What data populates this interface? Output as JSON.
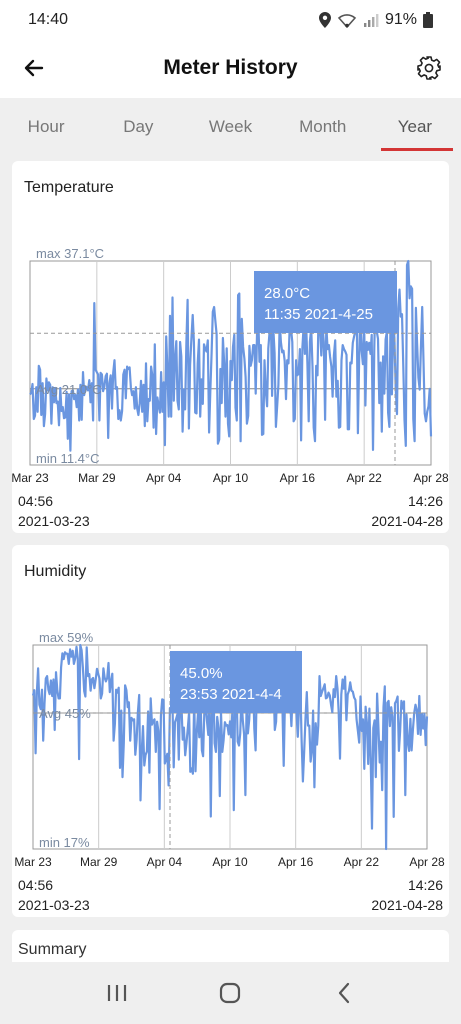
{
  "status": {
    "time": "14:40",
    "battery": "91%"
  },
  "header": {
    "title": "Meter History",
    "back_icon": "arrow-left-icon",
    "settings_icon": "gear-icon"
  },
  "tabs": [
    {
      "label": "Hour",
      "active": false
    },
    {
      "label": "Day",
      "active": false
    },
    {
      "label": "Week",
      "active": false
    },
    {
      "label": "Month",
      "active": false
    },
    {
      "label": "Year",
      "active": true
    }
  ],
  "accent_color": "#d33535",
  "line_color": "#6a96e0",
  "cards": [
    {
      "title": "Temperature",
      "max_label": "max 37.1°C",
      "avg_label": "Avg 21.0°C",
      "min_label": "min 11.4°C",
      "tooltip_value": "28.0°C",
      "tooltip_time": "11:35 2021-4-25",
      "start_time": "04:56",
      "start_date": "2021-03-23",
      "end_time": "14:26",
      "end_date": "2021-04-28"
    },
    {
      "title": "Humidity",
      "max_label": "max 59%",
      "avg_label": "Avg 45%",
      "min_label": "min 17%",
      "tooltip_value": "45.0%",
      "tooltip_time": "23:53 2021-4-4",
      "start_time": "04:56",
      "start_date": "2021-03-23",
      "end_time": "14:26",
      "end_date": "2021-04-28"
    }
  ],
  "summary": {
    "title": "Summary"
  },
  "nav": {
    "recents_icon": "recents-icon",
    "home_icon": "home-icon",
    "back_icon": "back-icon"
  },
  "chart_data": [
    {
      "type": "line",
      "title": "Temperature",
      "x_tick_labels": [
        "Mar 23",
        "Mar 29",
        "Apr 04",
        "Apr 10",
        "Apr 16",
        "Apr 22",
        "Apr 28"
      ],
      "x_range": [
        "2021-03-23 04:56",
        "2021-04-28 14:26"
      ],
      "ylim": [
        11.4,
        37.1
      ],
      "max": 37.1,
      "avg": 21.0,
      "min": 11.4,
      "unit": "°C",
      "grid": true,
      "highlight": {
        "value": 28.0,
        "time": "2021-04-25 11:35"
      },
      "series": [
        {
          "values": [
            20.3,
            20.5,
            21.6,
            17.2,
            17.6,
            21.2,
            18.1,
            23.9,
            23.4,
            17.7,
            21.7,
            16.3,
            17.8,
            22.3,
            20.8,
            21.8,
            21.5,
            16.6,
            21.2,
            19.3,
            21.1,
            19.2,
            19.4,
            16.4,
            21.1,
            18.2,
            18.7,
            17.3,
            17.4,
            20.6,
            14.7,
            20.3,
            13.2,
            20.7,
            20.8,
            19.7,
            20.2,
            18.7,
            20.9,
            17.0,
            21.5,
            17.1,
            23.1,
            20.2,
            21.3,
            21.2,
            20.8,
            22.1,
            19.3,
            21.7,
            17.0,
            31.8,
            23.4,
            23.1,
            22.8,
            17.0,
            23.0,
            22.8,
            20.7,
            21.3,
            22.6,
            22.9,
            14.8,
            21.7,
            22.7,
            18.5,
            23.0,
            24.6,
            21.0,
            21.2,
            17.2,
            18.3,
            17.0,
            18.2,
            22.8,
            23.4,
            19.8,
            23.8,
            23.5,
            23.7,
            21.1,
            20.2,
            20.7,
            18.5,
            21.2,
            18.5,
            17.7,
            19.2,
            22.0,
            18.1,
            21.5,
            16.3,
            24.2,
            16.9,
            19.7,
            19.5,
            23.8,
            22.7,
            16.1,
            26.6,
            15.3,
            19.9,
            18.9,
            18.0,
            23.1,
            18.1,
            21.8,
            13.9,
            27.6,
            23.5,
            17.5,
            30.2,
            17.5,
            32.5,
            19.5,
            24.6,
            27.0,
            19.5,
            18.4,
            26.9,
            25.1,
            15.6,
            20.9,
            18.4,
            26.9,
            32.2,
            16.0,
            24.0,
            27.3,
            30.3,
            26.9,
            18.0,
            17.9,
            24.2,
            27.2,
            17.5,
            22.2,
            19.1,
            26.6,
            26.0,
            25.7,
            27.1,
            15.5,
            20.6,
            25.5,
            30.7,
            31.3,
            29.5,
            27.9,
            14.1,
            14.6,
            23.5,
            19.2,
            27.4,
            24.2,
            17.5,
            26.1,
            16.6,
            15.0,
            24.5,
            22.1,
            26.3,
            27.8,
            18.6,
            17.0,
            32.8,
            33.0,
            14.4,
            29.8,
            26.3,
            24.8,
            22.5,
            16.6,
            17.6,
            26.4,
            23.9,
            24.6,
            26.5,
            26.5,
            20.4,
            27.8,
            30.2,
            24.4,
            26.5,
            15.2,
            15.3,
            24.6,
            20.7,
            18.8,
            26.1,
            28.2,
            29.6,
            20.1,
            28.4,
            25.5,
            16.2,
            18.9,
            21.5,
            29.6,
            26.9,
            25.6,
            25.8,
            24.5,
            19.7,
            24.6,
            24.2,
            29.3,
            28.6,
            26.9,
            16.9,
            17.2,
            24.6,
            22.7,
            22.9,
            26.0,
            14.5,
            26.2,
            28.8,
            25.4,
            29.0,
            24.2,
            16.9,
            26.9,
            28.7,
            23.8,
            16.1,
            14.4,
            23.9,
            22.7,
            32.5,
            28.8,
            25.2,
            28.8,
            26.9,
            17.1,
            28.9,
            26.0,
            26.5,
            25.0,
            23.8,
            20.0,
            25.2,
            27.1,
            20.0,
            22.0,
            16.1,
            16.2,
            24.6,
            26.5,
            26.0,
            25.7,
            25.3,
            15.9,
            15.9,
            24.3,
            24.2,
            26.8,
            27.6,
            28.2,
            32.1,
            15.4,
            24.4,
            31.5,
            25.8,
            24.1,
            28.8,
            18.9,
            26.9,
            25.9,
            26.8,
            25.4,
            27.8,
            13.3,
            26.2,
            33.1,
            28.2,
            27.3,
            19.2,
            24.3,
            15.6,
            25.1,
            20.4,
            27.2,
            28.2,
            18.0,
            16.2,
            30.7,
            20.3,
            29.5,
            27.4,
            21.1,
            17.8,
            31.1,
            33.5,
            30.1,
            30.4,
            23.8,
            17.1,
            13.8,
            36.6,
            37.1,
            32.4,
            33.9,
            33.6,
            17.2,
            14.4,
            31.2,
            26.7,
            22.4,
            20.9,
            26.1,
            31.3,
            25.0,
            17.9,
            16.9,
            18.1,
            18.8,
            21.0,
            15.0
          ]
        }
      ]
    },
    {
      "type": "line",
      "title": "Humidity",
      "x_tick_labels": [
        "Mar 23",
        "Mar 29",
        "Apr 04",
        "Apr 10",
        "Apr 16",
        "Apr 22",
        "Apr 28"
      ],
      "x_range": [
        "2021-03-23 04:56",
        "2021-04-28 14:26"
      ],
      "ylim": [
        17,
        59
      ],
      "max": 59,
      "avg": 45,
      "min": 17,
      "unit": "%",
      "grid": true,
      "highlight": {
        "value": 45.0,
        "time": "2021-04-04 23:53"
      },
      "series": [
        {
          "values": [
            48.6,
            49.7,
            36.7,
            49.0,
            54.2,
            46.7,
            45.8,
            49.8,
            39.3,
            46.9,
            52.1,
            52.6,
            49.8,
            48.9,
            51.7,
            48.5,
            51.9,
            41.5,
            53.4,
            49.7,
            48.0,
            48.0,
            54.4,
            57.3,
            56.1,
            57.5,
            57.2,
            57.2,
            55.1,
            58.1,
            56.6,
            57.8,
            55.1,
            56.2,
            58.6,
            56.2,
            35.5,
            59.0,
            57.9,
            54.3,
            49.5,
            48.4,
            58.5,
            52.6,
            53.0,
            49.6,
            51.9,
            52.2,
            50.1,
            51.9,
            54.1,
            53.1,
            52.1,
            48.0,
            49.0,
            54.2,
            52.3,
            51.5,
            52.2,
            55.3,
            49.3,
            51.4,
            53.1,
            39.3,
            42.8,
            49.8,
            49.2,
            50.2,
            33.7,
            45.5,
            31.8,
            38.8,
            50.7,
            49.7,
            46.2,
            47.2,
            39.3,
            44.0,
            43.5,
            43.7,
            36.4,
            39.4,
            45.2,
            48.7,
            27.0,
            36.9,
            42.3,
            34.2,
            36.4,
            37.1,
            45.3,
            32.7,
            48.0,
            42.6,
            43.4,
            43.7,
            37.0,
            43.2,
            41.3,
            25.2,
            44.4,
            47.8,
            47.7,
            34.6,
            35.4,
            36.6,
            30.1,
            46.0,
            45.6,
            47.8,
            33.8,
            43.1,
            43.9,
            44.9,
            35.4,
            48.0,
            47.1,
            39.5,
            42.0,
            36.3,
            38.9,
            41.8,
            45.2,
            32.9,
            33.6,
            32.5,
            48.0,
            33.0,
            40.8,
            45.0,
            40.0,
            47.5,
            37.3,
            36.1,
            45.8,
            46.6,
            43.3,
            40.5,
            49.7,
            23.7,
            45.9,
            50.7,
            38.8,
            37.0,
            44.2,
            41.9,
            27.9,
            45.2,
            37.0,
            39.4,
            43.1,
            42.4,
            42.5,
            40.6,
            43.3,
            40.0,
            46.8,
            25.0,
            46.6,
            51.2,
            39.1,
            38.3,
            40.7,
            48.2,
            43.5,
            40.6,
            28.1,
            47.1,
            40.8,
            43.6,
            49.0,
            46.8,
            52.2,
            41.8,
            37.3,
            51.9,
            51.1,
            47.0,
            50.5,
            50.9,
            51.8,
            46.0,
            50.1,
            52.6,
            51.4,
            50.8,
            49.9,
            48.6,
            51.6,
            41.5,
            43.2,
            51.9,
            51.3,
            50.9,
            51.1,
            46.5,
            34.1,
            48.1,
            51.2,
            49.1,
            50.0,
            48.0,
            42.3,
            49.5,
            54.4,
            52.0,
            45.0,
            40.1,
            46.6,
            50.3,
            39.5,
            30.9,
            37.2,
            43.9,
            49.3,
            42.4,
            42.4,
            35.0,
            37.4,
            45.5,
            29.7,
            42.9,
            38.5,
            42.4,
            52.6,
            48.5,
            49.4,
            50.1,
            50.9,
            48.0,
            48.2,
            49.2,
            48.6,
            46.6,
            45.2,
            49.9,
            48.3,
            52.6,
            50.0,
            45.1,
            35.6,
            48.8,
            51.9,
            50.0,
            52.5,
            43.5,
            48.8,
            49.6,
            51.3,
            49.6,
            49.4,
            48.2,
            47.7,
            43.6,
            41.3,
            38.9,
            48.4,
            41.3,
            43.7,
            33.5,
            46.3,
            43.0,
            34.5,
            45.9,
            35.6,
            21.2,
            41.9,
            43.5,
            31.8,
            49.0,
            42.2,
            34.8,
            39.1,
            29.1,
            46.2,
            50.5,
            17.0,
            47.1,
            47.5,
            42.3,
            46.2,
            44.2,
            23.6,
            47.0,
            47.5,
            48.4,
            37.2,
            41.2,
            47.5,
            45.9,
            47.4,
            28.1,
            44.7,
            39.1,
            37.2,
            43.8,
            37.3,
            41.5,
            45.0,
            46.7,
            45.6,
            40.7,
            48.5,
            40.5,
            44.8,
            41.8,
            44.8,
            38.4,
            44.3
          ]
        }
      ]
    }
  ]
}
